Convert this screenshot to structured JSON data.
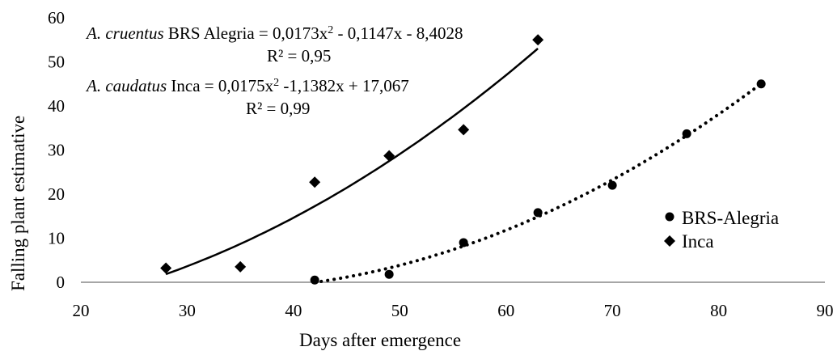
{
  "chart_data": {
    "type": "scatter",
    "xlabel": "Days after emergence",
    "ylabel": "Falling plant estimative",
    "xlim": [
      20,
      90
    ],
    "ylim": [
      0,
      60
    ],
    "xticks": [
      "20",
      "30",
      "40",
      "50",
      "60",
      "70",
      "80",
      "90"
    ],
    "yticks": [
      "0",
      "10",
      "20",
      "30",
      "40",
      "50",
      "60"
    ],
    "grid": false,
    "legend_position": "right",
    "series": [
      {
        "name": "BRS-Alegria",
        "marker": "circle",
        "trendline": "dotted",
        "points": [
          {
            "x": 42,
            "y": 0.5
          },
          {
            "x": 49,
            "y": 1.8
          },
          {
            "x": 56,
            "y": 9
          },
          {
            "x": 63,
            "y": 15.8
          },
          {
            "x": 70,
            "y": 22
          },
          {
            "x": 77,
            "y": 33.7
          },
          {
            "x": 84,
            "y": 45
          }
        ],
        "trend_range": [
          42,
          84
        ]
      },
      {
        "name": "Inca",
        "marker": "diamond",
        "trendline": "solid",
        "points": [
          {
            "x": 28,
            "y": 3.2
          },
          {
            "x": 35,
            "y": 3.5
          },
          {
            "x": 42,
            "y": 22.7
          },
          {
            "x": 49,
            "y": 28.7
          },
          {
            "x": 56,
            "y": 34.6
          },
          {
            "x": 63,
            "y": 55
          }
        ],
        "trend_range": [
          28,
          63
        ]
      }
    ],
    "annotations": {
      "eq1_species": "A. cruentus",
      "eq1_rest_a": " BRS Alegria = 0,0173x",
      "eq1_sup": "2",
      "eq1_rest_b": " - 0,1147x - 8,4028",
      "eq1_r2": "R² = 0,95",
      "eq2_species": "A. caudatus",
      "eq2_rest_a": " Inca  = 0,0175x",
      "eq2_sup": "2",
      "eq2_rest_b": " -1,1382x + 17,067",
      "eq2_r2": "R² = 0,99"
    }
  }
}
